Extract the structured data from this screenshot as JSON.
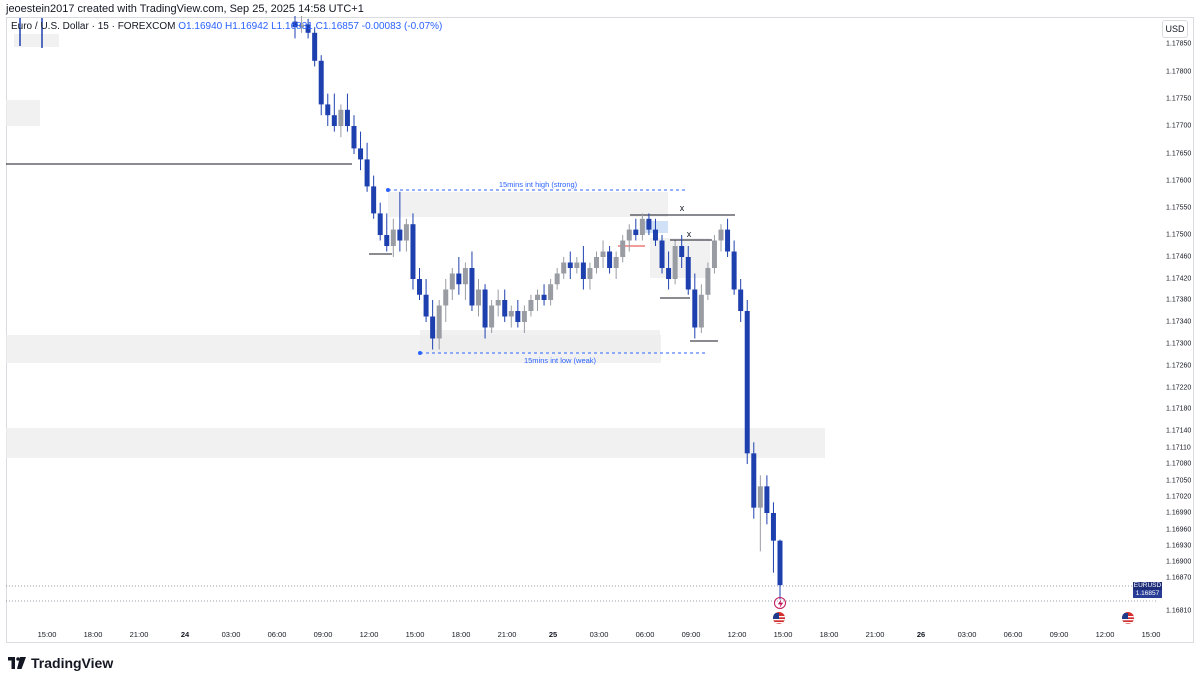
{
  "header": {
    "created_by": "jeoestein2017 created with TradingView.com, Sep 25, 2025 14:58 UTC+1",
    "symbol_desc": "Euro / U.S. Dollar · 15 · FOREXCOM",
    "ohlc": "O1.16940  H1.16942  L1.16831  C1.16857  -0.00083 (-0.07%)",
    "currency_button": "USD"
  },
  "price_tag": {
    "symbol": "EURUSD",
    "price": "1.16857",
    "countdown": "01:04"
  },
  "brand": {
    "name": "TradingView"
  },
  "chart_data": {
    "type": "candlestick",
    "symbol": "EURUSD",
    "timeframe": "15",
    "y_ticks": [
      "1.17850",
      "1.17800",
      "1.17750",
      "1.17700",
      "1.17650",
      "1.17600",
      "1.17550",
      "1.17500",
      "1.17460",
      "1.17420",
      "1.17380",
      "1.17340",
      "1.17300",
      "1.17260",
      "1.17220",
      "1.17180",
      "1.17140",
      "1.17110",
      "1.17080",
      "1.17050",
      "1.17020",
      "1.16990",
      "1.16960",
      "1.16930",
      "1.16900",
      "1.16870",
      "1.16810"
    ],
    "x_ticks": [
      "15:00",
      "18:00",
      "21:00",
      "24",
      "03:00",
      "06:00",
      "09:00",
      "12:00",
      "15:00",
      "18:00",
      "21:00",
      "25",
      "03:00",
      "06:00",
      "09:00",
      "12:00",
      "15:00",
      "18:00",
      "21:00",
      "26",
      "03:00",
      "06:00",
      "09:00",
      "12:00",
      "15:00"
    ],
    "bold_x_ticks": [
      "24",
      "25",
      "26"
    ],
    "annotations": [
      {
        "text": "15mins int high (strong)",
        "price": 1.1758
      },
      {
        "text": "15mins int low (weak)",
        "price": 1.1728
      },
      {
        "text": "x"
      },
      {
        "text": "x"
      }
    ],
    "last_price": 1.16857,
    "series": [
      {
        "name": "EURUSD",
        "ohlc": [
          [
            1.1789,
            1.179,
            1.1786,
            1.1788
          ],
          [
            1.1788,
            1.179,
            1.1787,
            1.17885
          ],
          [
            1.17885,
            1.17895,
            1.1786,
            1.1787
          ],
          [
            1.1787,
            1.1788,
            1.1781,
            1.1782
          ],
          [
            1.1782,
            1.1783,
            1.1772,
            1.1774
          ],
          [
            1.1774,
            1.1776,
            1.177,
            1.1772
          ],
          [
            1.1772,
            1.1776,
            1.1769,
            1.177
          ],
          [
            1.177,
            1.1774,
            1.1768,
            1.1773
          ],
          [
            1.1773,
            1.1776,
            1.1769,
            1.177
          ],
          [
            1.177,
            1.1772,
            1.1765,
            1.1766
          ],
          [
            1.1766,
            1.1769,
            1.1762,
            1.1764
          ],
          [
            1.1764,
            1.1767,
            1.1758,
            1.1759
          ],
          [
            1.1759,
            1.1761,
            1.1753,
            1.1754
          ],
          [
            1.1754,
            1.1756,
            1.1749,
            1.175
          ],
          [
            1.175,
            1.1754,
            1.1747,
            1.1748
          ],
          [
            1.1748,
            1.1753,
            1.1746,
            1.1751
          ],
          [
            1.1751,
            1.1758,
            1.1747,
            1.1749
          ],
          [
            1.1749,
            1.1753,
            1.1747,
            1.1752
          ],
          [
            1.1752,
            1.1754,
            1.174,
            1.1742
          ],
          [
            1.1742,
            1.1744,
            1.1738,
            1.1739
          ],
          [
            1.1739,
            1.1742,
            1.1734,
            1.1735
          ],
          [
            1.1735,
            1.1738,
            1.1729,
            1.1731
          ],
          [
            1.1731,
            1.1738,
            1.1729,
            1.1737
          ],
          [
            1.1737,
            1.1742,
            1.1734,
            1.174
          ],
          [
            1.174,
            1.1744,
            1.1738,
            1.1743
          ],
          [
            1.1743,
            1.1746,
            1.1739,
            1.1741
          ],
          [
            1.1741,
            1.1745,
            1.1738,
            1.1744
          ],
          [
            1.1744,
            1.1747,
            1.1736,
            1.1737
          ],
          [
            1.1737,
            1.1742,
            1.1735,
            1.174
          ],
          [
            1.174,
            1.1741,
            1.1731,
            1.1733
          ],
          [
            1.1733,
            1.1738,
            1.1732,
            1.1737
          ],
          [
            1.1737,
            1.174,
            1.1735,
            1.1738
          ],
          [
            1.1738,
            1.174,
            1.1734,
            1.1735
          ],
          [
            1.1735,
            1.1737,
            1.1733,
            1.1736
          ],
          [
            1.1736,
            1.1738,
            1.1733,
            1.1734
          ],
          [
            1.1734,
            1.1737,
            1.1732,
            1.1736
          ],
          [
            1.1736,
            1.1739,
            1.1735,
            1.1738
          ],
          [
            1.1738,
            1.174,
            1.1736,
            1.1739
          ],
          [
            1.1739,
            1.1741,
            1.1737,
            1.1738
          ],
          [
            1.1738,
            1.1742,
            1.1737,
            1.1741
          ],
          [
            1.1741,
            1.1744,
            1.174,
            1.1743
          ],
          [
            1.1743,
            1.1746,
            1.1742,
            1.1745
          ],
          [
            1.1745,
            1.1747,
            1.1742,
            1.1744
          ],
          [
            1.1744,
            1.1746,
            1.1743,
            1.1745
          ],
          [
            1.1745,
            1.1748,
            1.174,
            1.1742
          ],
          [
            1.1742,
            1.1745,
            1.174,
            1.1744
          ],
          [
            1.1744,
            1.1747,
            1.1743,
            1.1746
          ],
          [
            1.1746,
            1.1749,
            1.1744,
            1.1747
          ],
          [
            1.1747,
            1.1748,
            1.1743,
            1.1744
          ],
          [
            1.1744,
            1.1747,
            1.1742,
            1.1746
          ],
          [
            1.1746,
            1.175,
            1.1745,
            1.1749
          ],
          [
            1.1749,
            1.1752,
            1.1747,
            1.1751
          ],
          [
            1.1751,
            1.1753,
            1.1749,
            1.175
          ],
          [
            1.175,
            1.1754,
            1.1749,
            1.1753
          ],
          [
            1.1753,
            1.1754,
            1.175,
            1.1751
          ],
          [
            1.1751,
            1.1753,
            1.1748,
            1.1749
          ],
          [
            1.1749,
            1.175,
            1.1743,
            1.1744
          ],
          [
            1.1744,
            1.1747,
            1.174,
            1.1742
          ],
          [
            1.1742,
            1.1749,
            1.1741,
            1.1748
          ],
          [
            1.1748,
            1.175,
            1.1744,
            1.1746
          ],
          [
            1.1746,
            1.1748,
            1.1739,
            1.174
          ],
          [
            1.174,
            1.1743,
            1.1731,
            1.1733
          ],
          [
            1.1733,
            1.1741,
            1.1732,
            1.1739
          ],
          [
            1.1739,
            1.1745,
            1.1738,
            1.1744
          ],
          [
            1.1744,
            1.175,
            1.1743,
            1.1749
          ],
          [
            1.1749,
            1.1752,
            1.1747,
            1.1751
          ],
          [
            1.1751,
            1.1753,
            1.1746,
            1.1747
          ],
          [
            1.1747,
            1.1749,
            1.1739,
            1.174
          ],
          [
            1.174,
            1.1742,
            1.1734,
            1.1736
          ],
          [
            1.1736,
            1.1738,
            1.1708,
            1.171
          ],
          [
            1.171,
            1.1712,
            1.1698,
            1.17
          ],
          [
            1.17,
            1.1706,
            1.1692,
            1.1704
          ],
          [
            1.1704,
            1.1706,
            1.1697,
            1.1699
          ],
          [
            1.1699,
            1.1701,
            1.1688,
            1.1694
          ],
          [
            1.1694,
            1.16942,
            1.16831,
            1.16857
          ]
        ]
      }
    ]
  }
}
